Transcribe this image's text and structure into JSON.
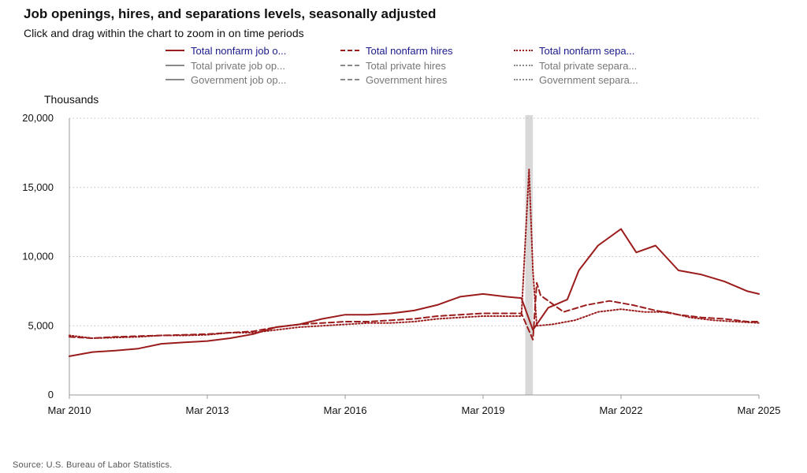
{
  "chart_data": {
    "type": "line",
    "title": "Job openings, hires, and separations levels, seasonally adjusted",
    "subtitle": "Click and drag within the chart to zoom in on time periods",
    "ylabel": "Thousands",
    "source": "Source: U.S. Bureau of Labor Statistics.",
    "ylim": [
      0,
      20000
    ],
    "yticks": [
      0,
      5000,
      10000,
      15000,
      20000
    ],
    "ytick_labels": [
      "0",
      "5,000",
      "10,000",
      "15,000",
      "20,000"
    ],
    "xlim": [
      "2010-03",
      "2025-03"
    ],
    "xticks": [
      "2010-03",
      "2013-03",
      "2016-03",
      "2019-03",
      "2022-03",
      "2025-03"
    ],
    "xtick_labels": [
      "Mar 2010",
      "Mar 2013",
      "Mar 2016",
      "Mar 2019",
      "Mar 2022",
      "Mar 2025"
    ],
    "recession_band": [
      "2020-02",
      "2020-04"
    ],
    "grid": "horizontal dotted",
    "legend_position": "top",
    "legend": [
      {
        "label": "Total nonfarm job o...",
        "style": "solid",
        "color": "#8b1a1a",
        "active": true
      },
      {
        "label": "Total nonfarm hires",
        "style": "dashed",
        "color": "#8b1a1a",
        "active": true
      },
      {
        "label": "Total nonfarm sepa...",
        "style": "dotted",
        "color": "#8b1a1a",
        "active": true
      },
      {
        "label": "Total private job op...",
        "style": "solid",
        "color": "#888888",
        "active": false
      },
      {
        "label": "Total private hires",
        "style": "dashed",
        "color": "#888888",
        "active": false
      },
      {
        "label": "Total private separa...",
        "style": "dotted",
        "color": "#888888",
        "active": false
      },
      {
        "label": "Government job op...",
        "style": "solid",
        "color": "#888888",
        "active": false
      },
      {
        "label": "Government hires",
        "style": "dashed",
        "color": "#888888",
        "active": false
      },
      {
        "label": "Government separa...",
        "style": "dotted",
        "color": "#888888",
        "active": false
      }
    ],
    "series": [
      {
        "name": "Total nonfarm job o...",
        "style": "solid",
        "points": [
          [
            "2010-03",
            2800
          ],
          [
            "2010-09",
            3100
          ],
          [
            "2011-03",
            3200
          ],
          [
            "2011-09",
            3350
          ],
          [
            "2012-03",
            3700
          ],
          [
            "2012-09",
            3800
          ],
          [
            "2013-03",
            3900
          ],
          [
            "2013-09",
            4100
          ],
          [
            "2014-03",
            4400
          ],
          [
            "2014-09",
            4900
          ],
          [
            "2015-03",
            5100
          ],
          [
            "2015-09",
            5500
          ],
          [
            "2016-03",
            5800
          ],
          [
            "2016-09",
            5800
          ],
          [
            "2017-03",
            5900
          ],
          [
            "2017-09",
            6100
          ],
          [
            "2018-03",
            6500
          ],
          [
            "2018-09",
            7100
          ],
          [
            "2019-03",
            7300
          ],
          [
            "2019-09",
            7100
          ],
          [
            "2020-01",
            7000
          ],
          [
            "2020-04",
            4700
          ],
          [
            "2020-08",
            6300
          ],
          [
            "2021-01",
            6900
          ],
          [
            "2021-04",
            9000
          ],
          [
            "2021-09",
            10800
          ],
          [
            "2022-03",
            12000
          ],
          [
            "2022-07",
            10300
          ],
          [
            "2022-12",
            10800
          ],
          [
            "2023-06",
            9000
          ],
          [
            "2023-12",
            8700
          ],
          [
            "2024-06",
            8200
          ],
          [
            "2024-12",
            7500
          ],
          [
            "2025-03",
            7300
          ]
        ]
      },
      {
        "name": "Total nonfarm hires",
        "style": "dashed",
        "points": [
          [
            "2010-03",
            4200
          ],
          [
            "2010-09",
            4100
          ],
          [
            "2011-03",
            4200
          ],
          [
            "2011-09",
            4250
          ],
          [
            "2012-03",
            4300
          ],
          [
            "2012-09",
            4350
          ],
          [
            "2013-03",
            4400
          ],
          [
            "2013-09",
            4500
          ],
          [
            "2014-03",
            4600
          ],
          [
            "2014-09",
            4900
          ],
          [
            "2015-03",
            5100
          ],
          [
            "2015-09",
            5200
          ],
          [
            "2016-03",
            5300
          ],
          [
            "2016-09",
            5300
          ],
          [
            "2017-03",
            5400
          ],
          [
            "2017-09",
            5500
          ],
          [
            "2018-03",
            5700
          ],
          [
            "2018-09",
            5800
          ],
          [
            "2019-03",
            5900
          ],
          [
            "2019-09",
            5900
          ],
          [
            "2020-01",
            5900
          ],
          [
            "2020-04",
            4000
          ],
          [
            "2020-05",
            8100
          ],
          [
            "2020-06",
            7200
          ],
          [
            "2020-12",
            6000
          ],
          [
            "2021-06",
            6500
          ],
          [
            "2021-12",
            6800
          ],
          [
            "2022-06",
            6500
          ],
          [
            "2022-12",
            6100
          ],
          [
            "2023-06",
            5800
          ],
          [
            "2023-12",
            5600
          ],
          [
            "2024-06",
            5500
          ],
          [
            "2024-12",
            5300
          ],
          [
            "2025-03",
            5300
          ]
        ]
      },
      {
        "name": "Total nonfarm sepa...",
        "style": "dotted",
        "points": [
          [
            "2010-03",
            4300
          ],
          [
            "2010-09",
            4100
          ],
          [
            "2011-03",
            4150
          ],
          [
            "2011-09",
            4200
          ],
          [
            "2012-03",
            4300
          ],
          [
            "2012-09",
            4300
          ],
          [
            "2013-03",
            4350
          ],
          [
            "2013-09",
            4500
          ],
          [
            "2014-03",
            4500
          ],
          [
            "2014-09",
            4700
          ],
          [
            "2015-03",
            4900
          ],
          [
            "2015-09",
            5000
          ],
          [
            "2016-03",
            5100
          ],
          [
            "2016-09",
            5200
          ],
          [
            "2017-03",
            5200
          ],
          [
            "2017-09",
            5300
          ],
          [
            "2018-03",
            5500
          ],
          [
            "2018-09",
            5600
          ],
          [
            "2019-03",
            5700
          ],
          [
            "2019-09",
            5700
          ],
          [
            "2020-01",
            5700
          ],
          [
            "2020-03",
            16300
          ],
          [
            "2020-04",
            9000
          ],
          [
            "2020-05",
            5000
          ],
          [
            "2020-09",
            5100
          ],
          [
            "2021-03",
            5400
          ],
          [
            "2021-09",
            6000
          ],
          [
            "2022-03",
            6200
          ],
          [
            "2022-09",
            6000
          ],
          [
            "2023-03",
            6000
          ],
          [
            "2023-09",
            5600
          ],
          [
            "2024-03",
            5400
          ],
          [
            "2024-09",
            5300
          ],
          [
            "2025-03",
            5200
          ]
        ]
      }
    ]
  }
}
